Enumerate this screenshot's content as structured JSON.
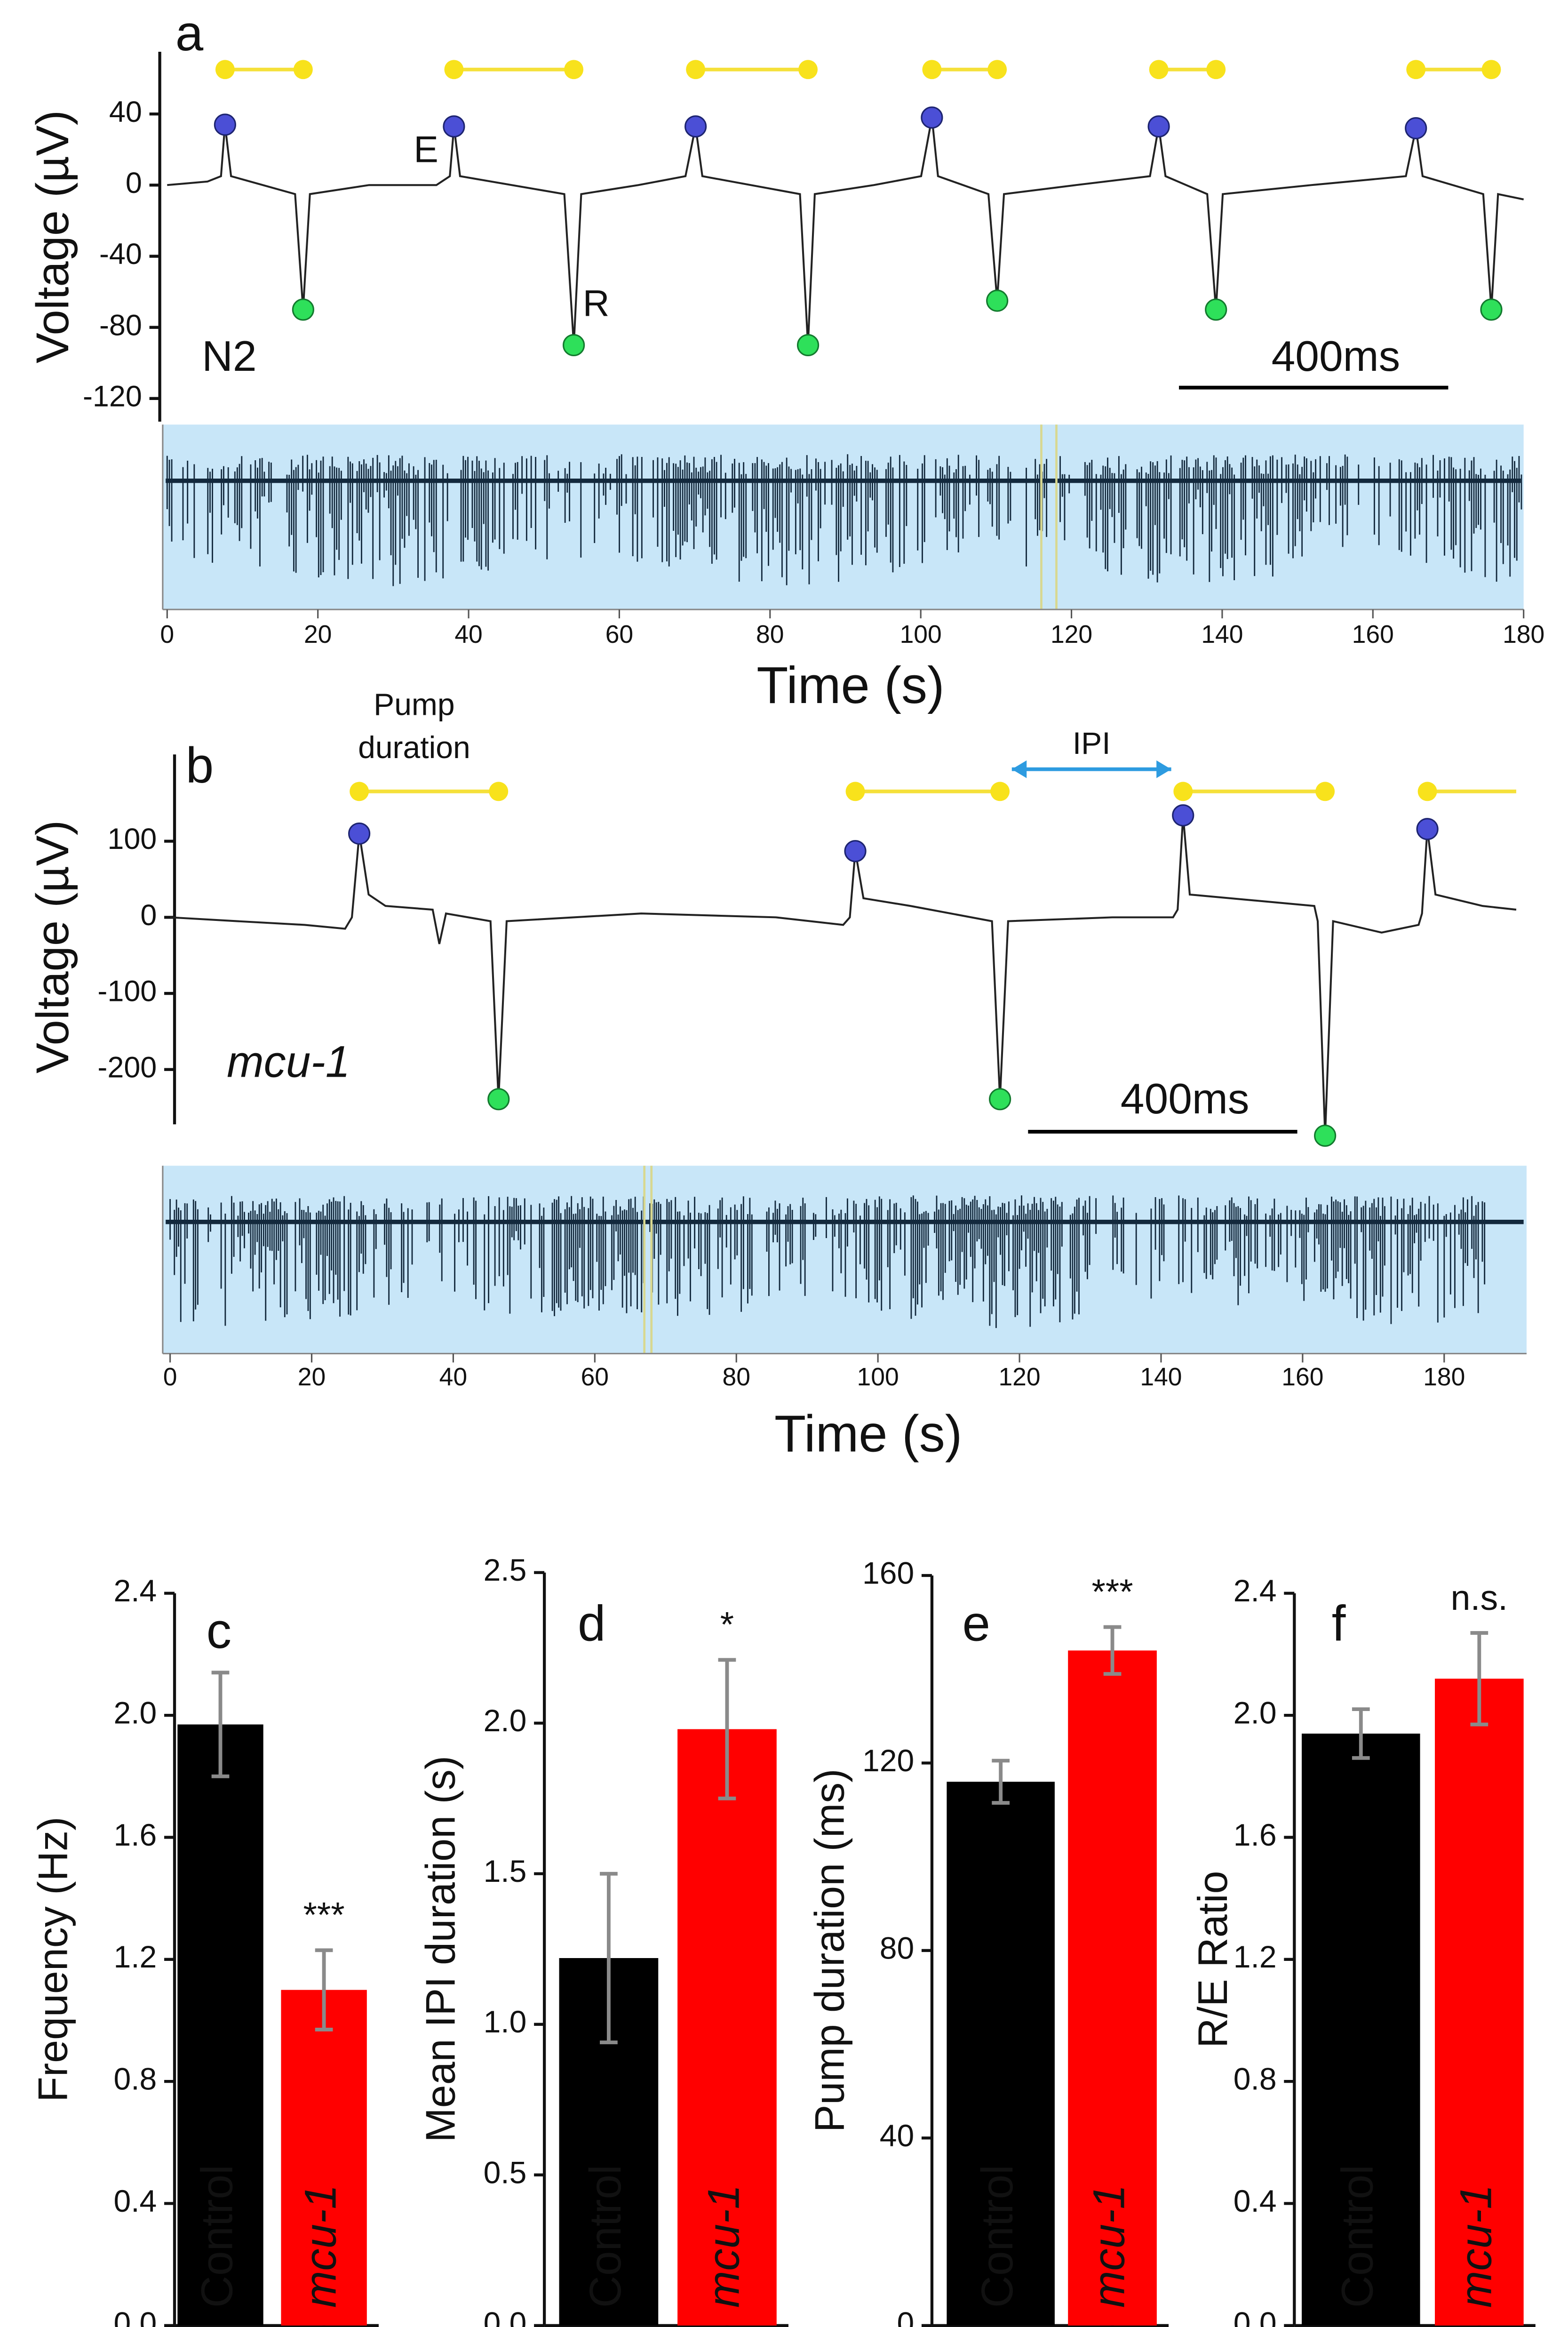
{
  "chart_data": [
    {
      "type": "trace",
      "label": "a",
      "ylabel": "Voltage (µV)",
      "ylim": [
        -133,
        75
      ],
      "yticks": [
        40,
        0,
        -40,
        -80,
        -120
      ],
      "xlim": [
        0,
        2015
      ],
      "x": [
        0,
        60,
        80,
        86,
        95,
        190,
        202,
        212,
        300,
        400,
        420,
        426,
        435,
        590,
        604,
        615,
        700,
        770,
        785,
        795,
        940,
        952,
        962,
        1050,
        1120,
        1136,
        1145,
        1220,
        1233,
        1243,
        1350,
        1460,
        1473,
        1483,
        1545,
        1558,
        1568,
        1700,
        1840,
        1855,
        1865,
        1955,
        1967,
        1977,
        2015
      ],
      "values": [
        0,
        2,
        5,
        34,
        5,
        -5,
        -70,
        -5,
        0,
        0,
        5,
        33,
        5,
        -5,
        -90,
        -5,
        0,
        5,
        33,
        5,
        -5,
        -90,
        -5,
        0,
        5,
        38,
        5,
        -5,
        -65,
        -5,
        0,
        5,
        33,
        5,
        -5,
        -70,
        -5,
        0,
        5,
        32,
        5,
        -5,
        -70,
        -5,
        -8
      ],
      "scale_bar": {
        "value": 400,
        "label": "400ms"
      },
      "annotations": [
        "E",
        "R",
        "N2"
      ],
      "overview": {
        "xlim": [
          0,
          180
        ],
        "xticks": [
          0,
          20,
          40,
          60,
          80,
          100,
          120,
          140,
          160,
          180
        ],
        "xlabel": "Time (s)",
        "window": [
          116,
          118
        ]
      }
    },
    {
      "type": "trace",
      "label": "b",
      "ylabel": "Voltage (µV)",
      "ylim": [
        -272,
        214
      ],
      "yticks": [
        100,
        0,
        -100,
        -200
      ],
      "xlim": [
        0,
        2000
      ],
      "x": [
        0,
        100,
        200,
        260,
        270,
        281,
        295,
        320,
        390,
        400,
        410,
        476,
        488,
        500,
        700,
        900,
        1000,
        1010,
        1018,
        1030,
        1100,
        1221,
        1233,
        1245,
        1400,
        1490,
        1497,
        1505,
        1515,
        1700,
        1705,
        1716,
        1728,
        1800,
        1855,
        1860,
        1868,
        1880,
        1950,
        2000
      ],
      "values": [
        0,
        -5,
        -10,
        -15,
        0,
        110,
        30,
        15,
        10,
        -35,
        5,
        -5,
        -239,
        -5,
        5,
        0,
        -10,
        0,
        87,
        25,
        15,
        -5,
        -239,
        -5,
        0,
        0,
        10,
        134,
        30,
        15,
        -5,
        -287,
        -5,
        -20,
        -10,
        5,
        116,
        30,
        15,
        10
      ],
      "scale_bar": {
        "value": 400,
        "label": "400ms"
      },
      "annotations": [
        "Pump duration",
        "IPI",
        "mcu-1"
      ],
      "overview": {
        "xlim": [
          0,
          186
        ],
        "xticks": [
          0,
          20,
          40,
          60,
          80,
          100,
          120,
          140,
          160,
          180
        ],
        "xlabel": "Time (s)",
        "window": [
          67,
          68
        ]
      }
    },
    {
      "type": "bar",
      "label": "c",
      "ylabel": "Frequency (Hz)",
      "categories": [
        "Control",
        "mcu-1"
      ],
      "values": [
        1.97,
        1.1
      ],
      "errors": [
        0.17,
        0.13
      ],
      "colors": [
        "#000000",
        "#ff0000"
      ],
      "annotation": "***",
      "ylim": [
        0,
        2.4
      ],
      "yticks": [
        {
          "value": 0,
          "label": "0.0"
        },
        0.4,
        0.8,
        1.2,
        1.6,
        {
          "value": 2,
          "label": "2.0"
        },
        2.4
      ]
    },
    {
      "type": "bar",
      "label": "d",
      "ylabel": "Mean IPI duration (s)",
      "categories": [
        "Control",
        "mcu-1"
      ],
      "values": [
        1.22,
        1.98
      ],
      "errors": [
        0.28,
        0.23
      ],
      "colors": [
        "#000000",
        "#ff0000"
      ],
      "annotation": "*",
      "ylim": [
        0,
        2.5
      ],
      "yticks": [
        {
          "value": 0,
          "label": "0.0"
        },
        0.5,
        {
          "value": 1,
          "label": "1.0"
        },
        1.5,
        {
          "value": 2,
          "label": "2.0"
        },
        2.5
      ]
    },
    {
      "type": "bar",
      "label": "e",
      "ylabel": "Pump duration (ms)",
      "categories": [
        "Control",
        "mcu-1"
      ],
      "values": [
        116,
        144
      ],
      "errors": [
        4.5,
        5
      ],
      "colors": [
        "#000000",
        "#ff0000"
      ],
      "annotation": "***",
      "ylim": [
        0,
        160
      ],
      "yticks": [
        0,
        40,
        80,
        120,
        160
      ]
    },
    {
      "type": "bar",
      "label": "f",
      "ylabel": "R/E Ratio",
      "categories": [
        "Control",
        "mcu-1"
      ],
      "values": [
        1.94,
        2.12
      ],
      "errors": [
        0.08,
        0.15
      ],
      "colors": [
        "#000000",
        "#ff0000"
      ],
      "annotation": "n.s.",
      "ylim": [
        0,
        2.4
      ],
      "yticks": [
        {
          "value": 0,
          "label": "0.0"
        },
        0.4,
        0.8,
        1.2,
        1.6,
        {
          "value": 2,
          "label": "2.0"
        },
        2.4
      ]
    }
  ]
}
